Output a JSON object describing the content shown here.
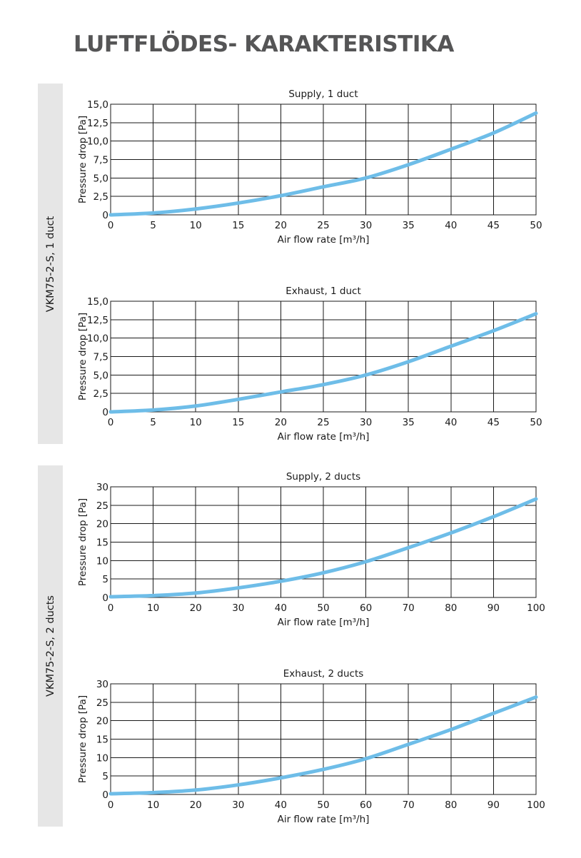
{
  "page": {
    "title": "LUFTFLÖDES- KARAKTERISTIKA"
  },
  "sections": [
    {
      "label": "VKM75-2-S, 1 duct"
    },
    {
      "label": "VKM75-2-S, 2 ducts"
    }
  ],
  "colors": {
    "curve": "#6ebde8",
    "grid": "#1a1a1a",
    "band": "#e6e6e6",
    "title": "#555556"
  },
  "chart_data": [
    {
      "type": "line",
      "title": "Supply, 1 duct",
      "xlabel": "Air flow rate [m³/h]",
      "ylabel": "Pressure drop [Pa]",
      "xlim": [
        0,
        50
      ],
      "ylim": [
        0,
        15
      ],
      "x_ticks": [
        "0",
        "5",
        "10",
        "15",
        "20",
        "25",
        "30",
        "35",
        "40",
        "45",
        "50"
      ],
      "y_ticks": [
        "0",
        "2,5",
        "5,0",
        "7,5",
        "10,0",
        "12,5",
        "15,0"
      ],
      "grid": true,
      "series": [
        {
          "x": [
            0,
            5,
            10,
            15,
            20,
            25,
            30,
            35,
            40,
            45,
            50
          ],
          "y": [
            0,
            0.25,
            0.8,
            1.6,
            2.6,
            3.8,
            5.0,
            6.8,
            8.9,
            11.1,
            13.8
          ]
        }
      ]
    },
    {
      "type": "line",
      "title": "Exhaust, 1 duct",
      "xlabel": "Air flow rate [m³/h]",
      "ylabel": "Pressure drop [Pa]",
      "xlim": [
        0,
        50
      ],
      "ylim": [
        0,
        15
      ],
      "x_ticks": [
        "0",
        "5",
        "10",
        "15",
        "20",
        "25",
        "30",
        "35",
        "40",
        "45",
        "50"
      ],
      "y_ticks": [
        "0",
        "2,5",
        "5,0",
        "7,5",
        "10,0",
        "12,5",
        "15,0"
      ],
      "grid": true,
      "series": [
        {
          "x": [
            0,
            5,
            10,
            15,
            20,
            25,
            30,
            35,
            40,
            45,
            50
          ],
          "y": [
            0,
            0.25,
            0.8,
            1.7,
            2.7,
            3.7,
            5.0,
            6.8,
            8.9,
            11.0,
            13.3
          ]
        }
      ]
    },
    {
      "type": "line",
      "title": "Supply, 2 ducts",
      "xlabel": "Air flow rate [m³/h]",
      "ylabel": "Pressure drop [Pa]",
      "xlim": [
        0,
        100
      ],
      "ylim": [
        0,
        30
      ],
      "x_ticks": [
        "0",
        "10",
        "20",
        "30",
        "40",
        "50",
        "60",
        "70",
        "80",
        "90",
        "100"
      ],
      "y_ticks": [
        "0",
        "5",
        "10",
        "15",
        "20",
        "25",
        "30"
      ],
      "grid": true,
      "series": [
        {
          "x": [
            0,
            10,
            20,
            30,
            40,
            50,
            60,
            70,
            80,
            90,
            100
          ],
          "y": [
            0.2,
            0.5,
            1.2,
            2.6,
            4.4,
            6.7,
            9.7,
            13.5,
            17.5,
            21.9,
            26.7
          ]
        }
      ]
    },
    {
      "type": "line",
      "title": "Exhaust, 2 ducts",
      "xlabel": "Air flow rate [m³/h]",
      "ylabel": "Pressure drop [Pa]",
      "xlim": [
        0,
        100
      ],
      "ylim": [
        0,
        30
      ],
      "x_ticks": [
        "0",
        "10",
        "20",
        "30",
        "40",
        "50",
        "60",
        "70",
        "80",
        "90",
        "100"
      ],
      "y_ticks": [
        "0",
        "5",
        "10",
        "15",
        "20",
        "25",
        "30"
      ],
      "grid": true,
      "series": [
        {
          "x": [
            0,
            10,
            20,
            30,
            40,
            50,
            60,
            70,
            80,
            90,
            100
          ],
          "y": [
            0.2,
            0.5,
            1.2,
            2.6,
            4.5,
            6.8,
            9.7,
            13.6,
            17.6,
            22.0,
            26.4
          ]
        }
      ]
    }
  ]
}
